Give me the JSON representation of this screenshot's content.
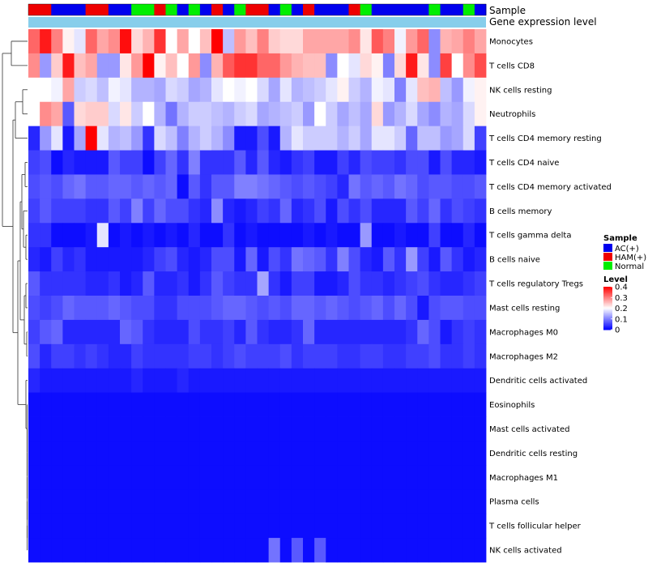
{
  "chart_data": {
    "type": "heatmap",
    "title": "",
    "annotation_labels": {
      "sample": "Sample",
      "gene": "Gene expression level"
    },
    "rows": [
      "Monocytes",
      "T cells CD8",
      "NK cells resting",
      "Neutrophils",
      "T cells CD4 memory resting",
      "T cells CD4 naive",
      "T cells CD4 memory activated",
      "B cells memory",
      "T cells gamma delta",
      "B cells naive",
      "T cells regulatory  Tregs",
      "Mast cells resting",
      "Macrophages M0",
      "Macrophages M2",
      "Dendritic cells activated",
      "Eosinophils",
      "Mast cells activated",
      "Dendritic cells resting",
      "Macrophages M1",
      "Plasma cells",
      "T cells follicular helper",
      "NK cells activated"
    ],
    "sample_groups": [
      "HAM(+)",
      "HAM(+)",
      "AC(+)",
      "AC(+)",
      "AC(+)",
      "HAM(+)",
      "HAM(+)",
      "AC(+)",
      "AC(+)",
      "Normal",
      "Normal",
      "HAM(+)",
      "Normal",
      "AC(+)",
      "Normal",
      "AC(+)",
      "HAM(+)",
      "AC(+)",
      "Normal",
      "HAM(+)",
      "HAM(+)",
      "AC(+)",
      "Normal",
      "AC(+)",
      "HAM(+)",
      "AC(+)",
      "AC(+)",
      "AC(+)",
      "HAM(+)",
      "Normal",
      "AC(+)",
      "AC(+)",
      "AC(+)",
      "AC(+)",
      "AC(+)",
      "Normal",
      "AC(+)",
      "AC(+)",
      "Normal",
      "AC(+)"
    ],
    "values": [
      [
        0.32,
        0.38,
        0.3,
        0.21,
        0.18,
        0.32,
        0.27,
        0.29,
        0.39,
        0.23,
        0.26,
        0.36,
        0.2,
        0.27,
        0.2,
        0.25,
        0.4,
        0.15,
        0.28,
        0.25,
        0.3,
        0.24,
        0.23,
        0.23,
        0.27,
        0.27,
        0.27,
        0.27,
        0.29,
        0.22,
        0.33,
        0.3,
        0.19,
        0.28,
        0.32,
        0.11,
        0.26,
        0.27,
        0.3,
        0.27
      ],
      [
        0.29,
        0.12,
        0.24,
        0.38,
        0.25,
        0.27,
        0.12,
        0.12,
        0.22,
        0.28,
        0.4,
        0.21,
        0.25,
        0.2,
        0.28,
        0.11,
        0.26,
        0.33,
        0.36,
        0.36,
        0.32,
        0.32,
        0.28,
        0.26,
        0.25,
        0.25,
        0.11,
        0.2,
        0.18,
        0.23,
        0.21,
        0.1,
        0.23,
        0.38,
        0.22,
        0.11,
        0.35,
        0.2,
        0.29,
        0.34
      ],
      [
        0.2,
        0.2,
        0.19,
        0.27,
        0.16,
        0.17,
        0.15,
        0.19,
        0.18,
        0.14,
        0.14,
        0.13,
        0.17,
        0.16,
        0.13,
        0.14,
        0.18,
        0.2,
        0.19,
        0.2,
        0.17,
        0.13,
        0.18,
        0.14,
        0.15,
        0.16,
        0.18,
        0.21,
        0.16,
        0.14,
        0.19,
        0.18,
        0.1,
        0.18,
        0.25,
        0.26,
        0.15,
        0.12,
        0.19,
        0.21
      ],
      [
        0.2,
        0.29,
        0.27,
        0.07,
        0.23,
        0.24,
        0.24,
        0.17,
        0.22,
        0.16,
        0.2,
        0.14,
        0.09,
        0.14,
        0.16,
        0.16,
        0.15,
        0.14,
        0.16,
        0.17,
        0.13,
        0.14,
        0.15,
        0.16,
        0.12,
        0.2,
        0.16,
        0.13,
        0.15,
        0.13,
        0.23,
        0.12,
        0.14,
        0.17,
        0.13,
        0.11,
        0.14,
        0.13,
        0.17,
        0.21
      ],
      [
        0.03,
        0.12,
        0.18,
        0.02,
        0.13,
        0.42,
        0.18,
        0.14,
        0.15,
        0.12,
        0.04,
        0.17,
        0.15,
        0.1,
        0.14,
        0.16,
        0.14,
        0.11,
        0.02,
        0.02,
        0.06,
        0.02,
        0.14,
        0.18,
        0.16,
        0.16,
        0.16,
        0.14,
        0.16,
        0.13,
        0.18,
        0.18,
        0.16,
        0.08,
        0.15,
        0.15,
        0.12,
        0.13,
        0.17,
        0.05
      ],
      [
        0.05,
        0.06,
        0.01,
        0.03,
        0.02,
        0.02,
        0.02,
        0.07,
        0.05,
        0.05,
        0.01,
        0.05,
        0.08,
        0.04,
        0.1,
        0.04,
        0.04,
        0.04,
        0.07,
        0.03,
        0.07,
        0.03,
        0.02,
        0.04,
        0.05,
        0.02,
        0.02,
        0.05,
        0.03,
        0.06,
        0.05,
        0.05,
        0.04,
        0.06,
        0.06,
        0.02,
        0.06,
        0.03,
        0.03,
        0.02
      ],
      [
        0.06,
        0.07,
        0.06,
        0.08,
        0.09,
        0.07,
        0.07,
        0.08,
        0.08,
        0.07,
        0.08,
        0.07,
        0.08,
        0.01,
        0.07,
        0.04,
        0.07,
        0.07,
        0.1,
        0.1,
        0.09,
        0.08,
        0.07,
        0.06,
        0.07,
        0.06,
        0.05,
        0.03,
        0.09,
        0.07,
        0.08,
        0.07,
        0.09,
        0.08,
        0.06,
        0.07,
        0.07,
        0.06,
        0.06,
        0.07
      ],
      [
        0.05,
        0.07,
        0.05,
        0.05,
        0.05,
        0.04,
        0.04,
        0.07,
        0.05,
        0.1,
        0.05,
        0.08,
        0.06,
        0.06,
        0.04,
        0.03,
        0.11,
        0.03,
        0.02,
        0.03,
        0.05,
        0.04,
        0.08,
        0.03,
        0.04,
        0.06,
        0.02,
        0.06,
        0.04,
        0.06,
        0.03,
        0.03,
        0.03,
        0.07,
        0.05,
        0.08,
        0.04,
        0.06,
        0.05,
        0.04
      ],
      [
        0.04,
        0.04,
        0.01,
        0.01,
        0.01,
        0.02,
        0.18,
        0.01,
        0.02,
        0.01,
        0.02,
        0.01,
        0.02,
        0.01,
        0.03,
        0.01,
        0.01,
        0.04,
        0.01,
        0.02,
        0.01,
        0.01,
        0.01,
        0.01,
        0.02,
        0.01,
        0.02,
        0.01,
        0.01,
        0.12,
        0.01,
        0.01,
        0.02,
        0.01,
        0.01,
        0.05,
        0.01,
        0.01,
        0.03,
        0.01
      ],
      [
        0.03,
        0.02,
        0.05,
        0.03,
        0.04,
        0.02,
        0.02,
        0.02,
        0.02,
        0.02,
        0.03,
        0.05,
        0.06,
        0.03,
        0.02,
        0.03,
        0.06,
        0.06,
        0.02,
        0.08,
        0.02,
        0.06,
        0.04,
        0.09,
        0.08,
        0.07,
        0.04,
        0.1,
        0.06,
        0.03,
        0.02,
        0.07,
        0.04,
        0.12,
        0.05,
        0.02,
        0.07,
        0.04,
        0.02,
        0.03
      ],
      [
        0.07,
        0.04,
        0.04,
        0.04,
        0.04,
        0.03,
        0.03,
        0.04,
        0.02,
        0.03,
        0.07,
        0.03,
        0.03,
        0.04,
        0.02,
        0.04,
        0.07,
        0.05,
        0.04,
        0.04,
        0.13,
        0.04,
        0.02,
        0.05,
        0.05,
        0.02,
        0.02,
        0.03,
        0.06,
        0.04,
        0.04,
        0.03,
        0.04,
        0.05,
        0.06,
        0.04,
        0.03,
        0.03,
        0.04,
        0.05
      ],
      [
        0.06,
        0.05,
        0.06,
        0.08,
        0.07,
        0.07,
        0.07,
        0.08,
        0.07,
        0.06,
        0.06,
        0.04,
        0.04,
        0.06,
        0.06,
        0.06,
        0.07,
        0.08,
        0.08,
        0.07,
        0.06,
        0.07,
        0.06,
        0.08,
        0.08,
        0.07,
        0.08,
        0.07,
        0.06,
        0.07,
        0.08,
        0.06,
        0.08,
        0.06,
        0.02,
        0.06,
        0.07,
        0.07,
        0.06,
        0.06
      ],
      [
        0.05,
        0.07,
        0.08,
        0.03,
        0.03,
        0.03,
        0.03,
        0.03,
        0.08,
        0.07,
        0.04,
        0.03,
        0.03,
        0.03,
        0.06,
        0.04,
        0.04,
        0.05,
        0.03,
        0.07,
        0.04,
        0.03,
        0.03,
        0.04,
        0.08,
        0.03,
        0.03,
        0.03,
        0.03,
        0.03,
        0.03,
        0.03,
        0.03,
        0.04,
        0.08,
        0.06,
        0.02,
        0.04,
        0.05,
        0.04
      ],
      [
        0.06,
        0.03,
        0.05,
        0.05,
        0.04,
        0.05,
        0.04,
        0.03,
        0.03,
        0.05,
        0.04,
        0.04,
        0.04,
        0.04,
        0.05,
        0.05,
        0.04,
        0.05,
        0.06,
        0.05,
        0.05,
        0.05,
        0.06,
        0.04,
        0.05,
        0.05,
        0.05,
        0.04,
        0.04,
        0.05,
        0.05,
        0.04,
        0.04,
        0.05,
        0.05,
        0.06,
        0.04,
        0.04,
        0.05,
        0.04
      ],
      [
        0.03,
        0.02,
        0.02,
        0.02,
        0.02,
        0.02,
        0.02,
        0.02,
        0.02,
        0.03,
        0.02,
        0.02,
        0.02,
        0.03,
        0.02,
        0.02,
        0.02,
        0.02,
        0.02,
        0.02,
        0.02,
        0.02,
        0.02,
        0.02,
        0.02,
        0.02,
        0.02,
        0.02,
        0.02,
        0.02,
        0.02,
        0.02,
        0.02,
        0.02,
        0.02,
        0.02,
        0.02,
        0.02,
        0.02,
        0.02
      ],
      [
        0.01,
        0.01,
        0.01,
        0.01,
        0.01,
        0.01,
        0.01,
        0.01,
        0.01,
        0.01,
        0.01,
        0.01,
        0.01,
        0.01,
        0.01,
        0.01,
        0.01,
        0.01,
        0.01,
        0.01,
        0.01,
        0.01,
        0.01,
        0.01,
        0.01,
        0.01,
        0.01,
        0.01,
        0.01,
        0.01,
        0.01,
        0.01,
        0.01,
        0.01,
        0.01,
        0.01,
        0.01,
        0.01,
        0.01,
        0.01
      ],
      [
        0.01,
        0.01,
        0.01,
        0.01,
        0.01,
        0.01,
        0.01,
        0.01,
        0.01,
        0.01,
        0.01,
        0.01,
        0.01,
        0.01,
        0.01,
        0.01,
        0.01,
        0.01,
        0.01,
        0.01,
        0.01,
        0.01,
        0.01,
        0.01,
        0.01,
        0.01,
        0.01,
        0.01,
        0.01,
        0.01,
        0.01,
        0.01,
        0.01,
        0.01,
        0.01,
        0.01,
        0.01,
        0.01,
        0.01,
        0.01
      ],
      [
        0.01,
        0.01,
        0.01,
        0.01,
        0.01,
        0.01,
        0.01,
        0.01,
        0.01,
        0.01,
        0.01,
        0.01,
        0.01,
        0.01,
        0.01,
        0.01,
        0.01,
        0.01,
        0.01,
        0.01,
        0.01,
        0.01,
        0.01,
        0.01,
        0.01,
        0.01,
        0.01,
        0.01,
        0.01,
        0.01,
        0.01,
        0.01,
        0.01,
        0.01,
        0.01,
        0.01,
        0.01,
        0.01,
        0.01,
        0.01
      ],
      [
        0.01,
        0.01,
        0.01,
        0.01,
        0.01,
        0.01,
        0.01,
        0.01,
        0.01,
        0.01,
        0.01,
        0.01,
        0.01,
        0.01,
        0.01,
        0.01,
        0.01,
        0.01,
        0.01,
        0.01,
        0.01,
        0.01,
        0.01,
        0.01,
        0.01,
        0.01,
        0.01,
        0.01,
        0.01,
        0.01,
        0.01,
        0.01,
        0.01,
        0.01,
        0.01,
        0.01,
        0.01,
        0.01,
        0.01,
        0.01
      ],
      [
        0.01,
        0.01,
        0.01,
        0.01,
        0.01,
        0.01,
        0.01,
        0.01,
        0.01,
        0.01,
        0.01,
        0.01,
        0.01,
        0.01,
        0.01,
        0.01,
        0.01,
        0.01,
        0.01,
        0.01,
        0.01,
        0.01,
        0.01,
        0.01,
        0.01,
        0.01,
        0.01,
        0.01,
        0.01,
        0.01,
        0.01,
        0.01,
        0.01,
        0.01,
        0.01,
        0.01,
        0.01,
        0.01,
        0.01,
        0.01
      ],
      [
        0.01,
        0.01,
        0.01,
        0.01,
        0.01,
        0.01,
        0.01,
        0.01,
        0.01,
        0.01,
        0.01,
        0.01,
        0.01,
        0.01,
        0.01,
        0.01,
        0.01,
        0.01,
        0.01,
        0.01,
        0.01,
        0.01,
        0.01,
        0.01,
        0.01,
        0.01,
        0.01,
        0.01,
        0.01,
        0.01,
        0.01,
        0.01,
        0.01,
        0.01,
        0.01,
        0.01,
        0.01,
        0.01,
        0.01,
        0.01
      ],
      [
        0.01,
        0.01,
        0.01,
        0.01,
        0.01,
        0.01,
        0.01,
        0.01,
        0.01,
        0.01,
        0.01,
        0.01,
        0.01,
        0.01,
        0.01,
        0.01,
        0.01,
        0.01,
        0.01,
        0.01,
        0.01,
        0.09,
        0.01,
        0.07,
        0.01,
        0.07,
        0.01,
        0.01,
        0.01,
        0.01,
        0.01,
        0.01,
        0.01,
        0.01,
        0.01,
        0.01,
        0.01,
        0.01,
        0.01,
        0.01
      ]
    ],
    "color_scale": {
      "low": "#0000FF",
      "mid": "#FFFFFF",
      "high": "#FF0000",
      "min": 0,
      "mid_value": 0.2,
      "max": 0.4
    },
    "legend": {
      "sample": {
        "title": "Sample",
        "entries": [
          {
            "label": "AC(+)",
            "color": "#0000EE"
          },
          {
            "label": "HAM(+)",
            "color": "#EE0000"
          },
          {
            "label": "Normal",
            "color": "#00EE00"
          }
        ]
      },
      "level": {
        "title": "Level",
        "ticks": [
          "0.4",
          "0.3",
          "0.2",
          "0.1",
          "0"
        ],
        "tick_values": [
          0.4,
          0.3,
          0.2,
          0.1,
          0
        ]
      },
      "placement": "right"
    },
    "gene_expression_color": "#87CEEB"
  }
}
